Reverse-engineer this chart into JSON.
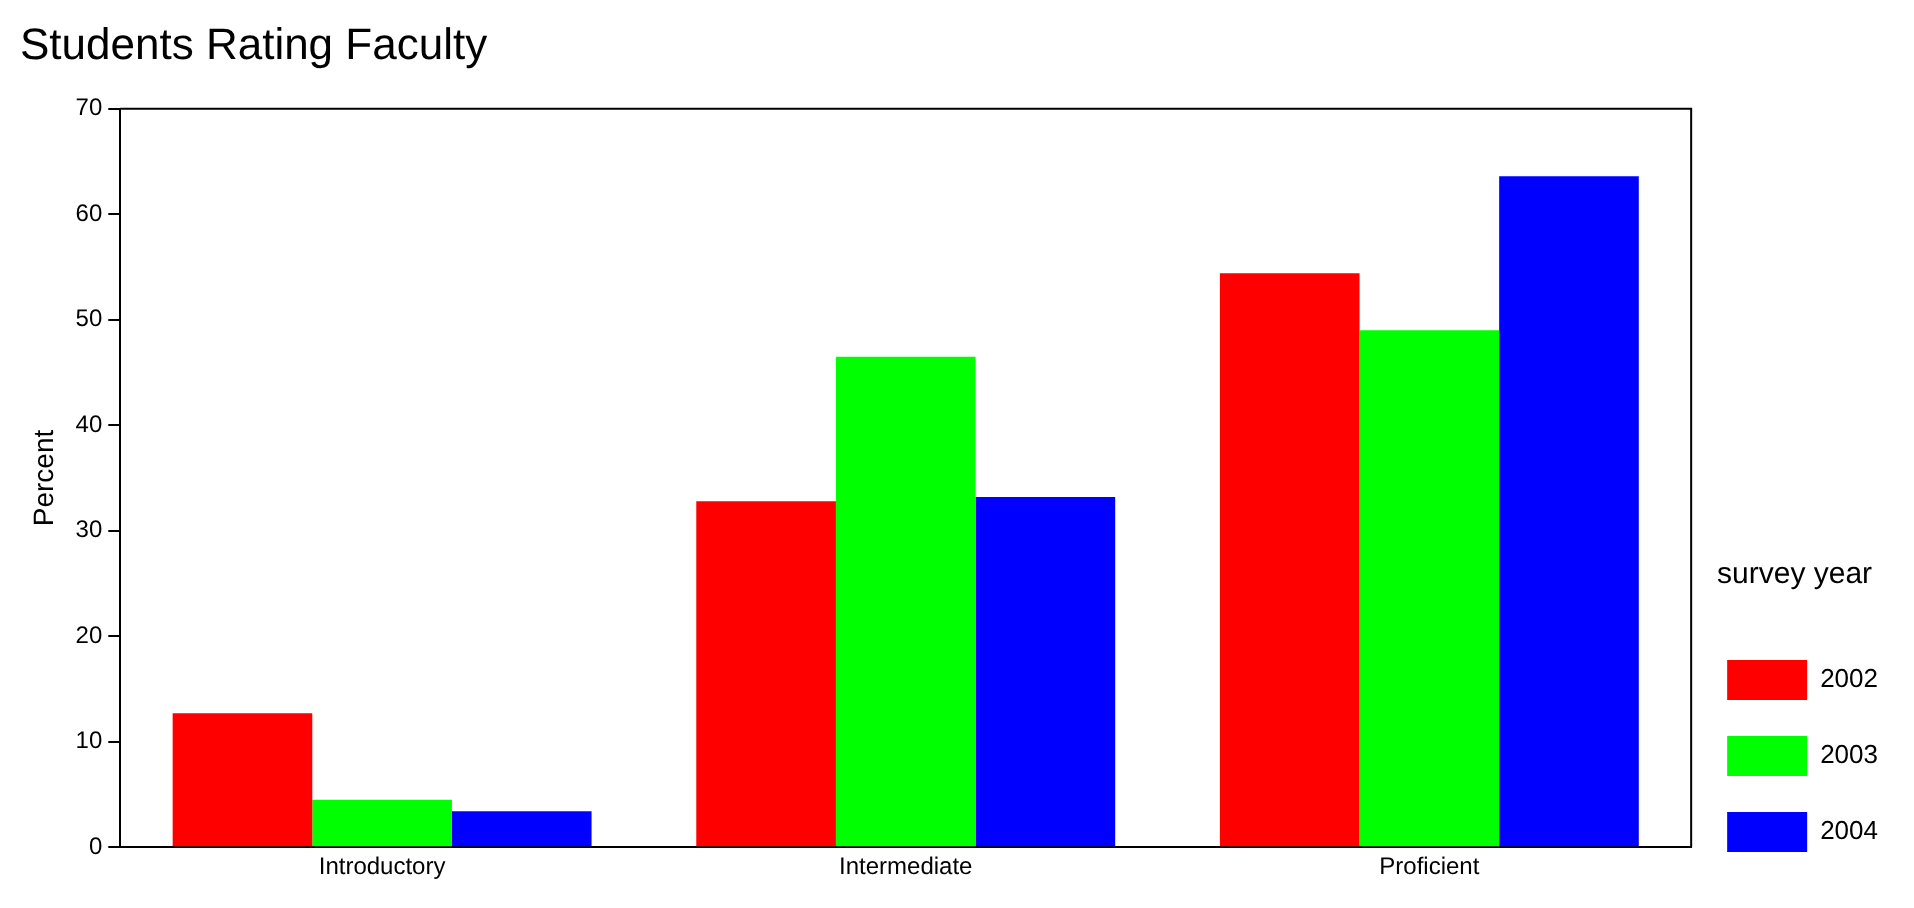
{
  "chart_data": {
    "type": "bar",
    "title": "Students Rating Faculty",
    "ylabel": "Percent",
    "legend_title": "survey year",
    "categories": [
      "Introductory",
      "Intermediate",
      "Proficient"
    ],
    "series": [
      {
        "name": "2002",
        "color": "#ff0000",
        "values": [
          12.7,
          32.8,
          54.4
        ]
      },
      {
        "name": "2003",
        "color": "#00ff00",
        "values": [
          4.5,
          46.5,
          49.0
        ]
      },
      {
        "name": "2004",
        "color": "#0000ff",
        "values": [
          3.4,
          33.2,
          63.6
        ]
      }
    ],
    "ylim": [
      0,
      70
    ],
    "yticks": [
      0,
      10,
      20,
      30,
      40,
      50,
      60,
      70
    ],
    "grid": false,
    "legend": "right"
  }
}
